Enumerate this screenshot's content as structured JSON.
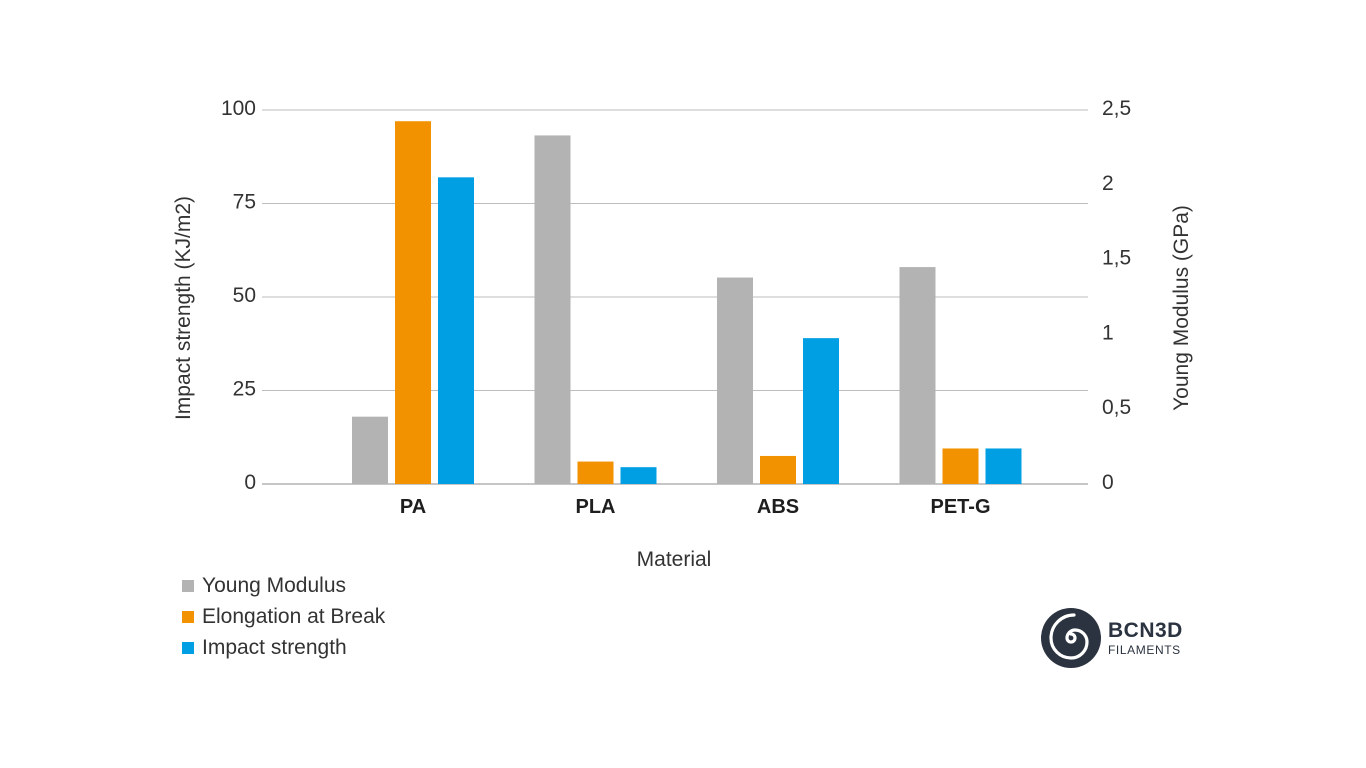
{
  "chart_data": {
    "type": "bar",
    "categories": [
      "PA",
      "PLA",
      "ABS",
      "PET-G"
    ],
    "xlabel": "Material",
    "ylabel_left": "Impact strength (KJ/m2)",
    "ylabel_right": "Young Modulus (GPa)",
    "ylim_left": [
      0,
      100
    ],
    "ylim_right": [
      0,
      2.5
    ],
    "yticks_left": [
      "0",
      "25",
      "50",
      "75",
      "100"
    ],
    "yticks_right": [
      "0",
      "0,5",
      "1",
      "1,5",
      "2",
      "2,5"
    ],
    "grid": true,
    "legend_position": "bottom-left",
    "series": [
      {
        "name": "Young Modulus",
        "axis": "right",
        "color": "#b3b3b3",
        "values": [
          0.45,
          2.33,
          1.38,
          1.45
        ]
      },
      {
        "name": "Elongation at Break",
        "axis": "left",
        "color": "#f39200",
        "values": [
          97,
          6,
          7.5,
          9.5
        ]
      },
      {
        "name": "Impact strength",
        "axis": "left",
        "color": "#009fe3",
        "values": [
          82,
          4.5,
          39,
          9.5
        ]
      }
    ]
  },
  "logo": {
    "name": "BCN3D",
    "subtitle": "FILAMENTS",
    "icon": "spiral-logo-icon",
    "color": "#2b3340"
  }
}
